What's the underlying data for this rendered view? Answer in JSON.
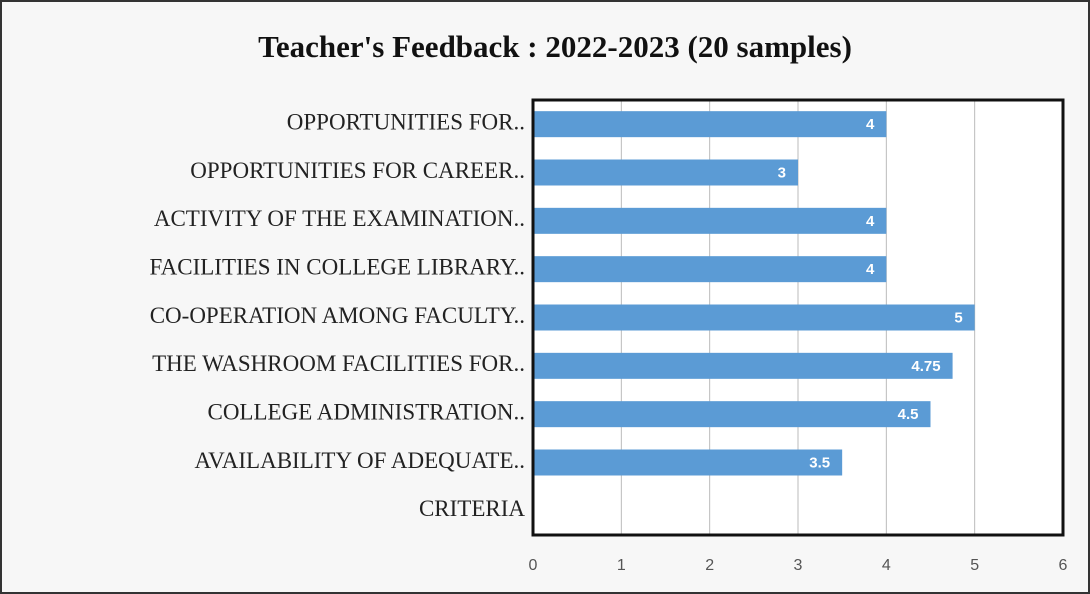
{
  "chart_data": {
    "type": "bar",
    "orientation": "horizontal",
    "title": "Teacher's Feedback : 2022-2023 (20 samples)",
    "categories": [
      "OPPORTUNITIES FOR..",
      "OPPORTUNITIES FOR CAREER..",
      "ACTIVITY OF THE EXAMINATION..",
      "FACILITIES IN COLLEGE LIBRARY..",
      "CO-OPERATION AMONG FACULTY..",
      "THE WASHROOM FACILITIES FOR..",
      "COLLEGE ADMINISTRATION..",
      "AVAILABILITY OF ADEQUATE..",
      "CRITERIA"
    ],
    "values": [
      4,
      3,
      4,
      4,
      5,
      4.75,
      4.5,
      3.5,
      null
    ],
    "color": "#5b9bd5",
    "xlim": [
      0,
      6
    ],
    "xticks": [
      0,
      1,
      2,
      3,
      4,
      5,
      6
    ],
    "grid": true
  }
}
